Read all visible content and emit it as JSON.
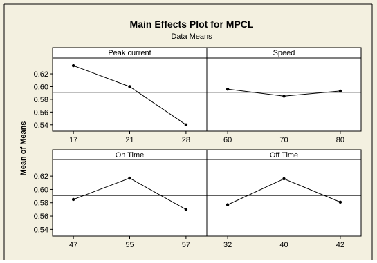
{
  "title": "Main Effects Plot for MPCL",
  "subtitle": "Data Means",
  "ylabel": "Mean of Means",
  "colors": {
    "window_background": "#f3f0e0",
    "plot_background": "#ffffff",
    "line": "#000000",
    "border": "#000000"
  },
  "chart_data": [
    {
      "type": "line",
      "panel": "Peak current",
      "categories": [
        "17",
        "21",
        "28"
      ],
      "values": [
        0.633,
        0.6,
        0.54
      ],
      "reference_line": 0.591,
      "ylim": [
        0.53,
        0.645
      ],
      "yticks": [
        "0.62",
        "0.60",
        "0.58",
        "0.56",
        "0.54"
      ],
      "ytick_values": [
        0.62,
        0.6,
        0.58,
        0.56,
        0.54
      ]
    },
    {
      "type": "line",
      "panel": "Speed",
      "categories": [
        "60",
        "70",
        "80"
      ],
      "values": [
        0.596,
        0.585,
        0.593
      ],
      "reference_line": 0.591,
      "ylim": [
        0.53,
        0.645
      ]
    },
    {
      "type": "line",
      "panel": "On Time",
      "categories": [
        "47",
        "55",
        "57"
      ],
      "values": [
        0.585,
        0.617,
        0.57
      ],
      "reference_line": 0.591,
      "ylim": [
        0.53,
        0.645
      ],
      "yticks": [
        "0.62",
        "0.60",
        "0.58",
        "0.56",
        "0.54"
      ],
      "ytick_values": [
        0.62,
        0.6,
        0.58,
        0.56,
        0.54
      ]
    },
    {
      "type": "line",
      "panel": "Off Time",
      "categories": [
        "32",
        "40",
        "42"
      ],
      "values": [
        0.577,
        0.616,
        0.581
      ],
      "reference_line": 0.591,
      "ylim": [
        0.53,
        0.645
      ]
    }
  ]
}
